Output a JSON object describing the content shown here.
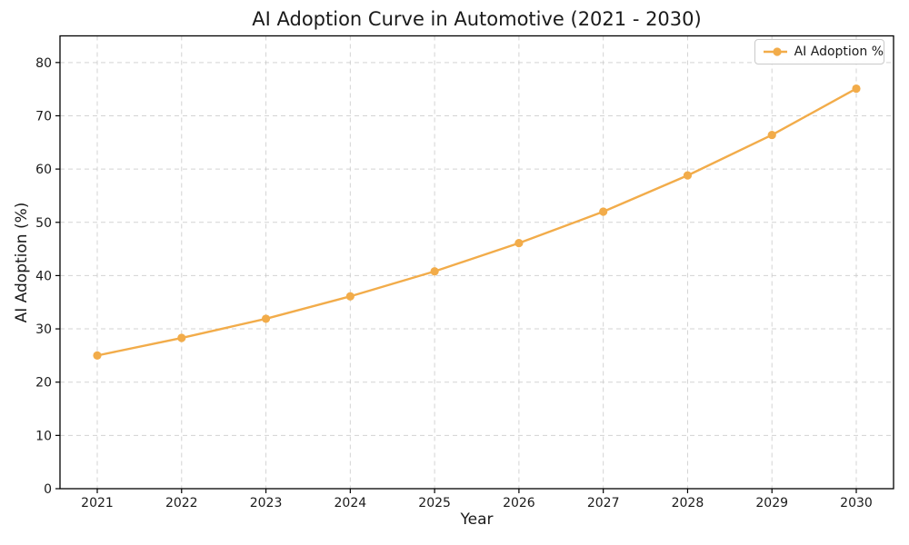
{
  "chart_data": {
    "type": "line",
    "title": "AI Adoption Curve in Automotive (2021 - 2030)",
    "xlabel": "Year",
    "ylabel": "AI Adoption (%)",
    "x": [
      2021,
      2022,
      2023,
      2024,
      2025,
      2026,
      2027,
      2028,
      2029,
      2030
    ],
    "series": [
      {
        "name": "AI Adoption %",
        "values": [
          25.0,
          28.3,
          31.9,
          36.1,
          40.8,
          46.1,
          52.0,
          58.8,
          66.4,
          75.1
        ],
        "color": "#F2AC4A",
        "marker": "circle",
        "line_style": "solid"
      }
    ],
    "ylim": [
      0,
      85
    ],
    "yticks": [
      0,
      10,
      20,
      30,
      40,
      50,
      60,
      70,
      80
    ],
    "grid": "on",
    "grid_style": "dashed",
    "grid_color": "#cccccc",
    "spine_color": "#000000",
    "tick_label_color": "#1a1a1a",
    "legend_position": "upper right",
    "background_color": "#ffffff"
  }
}
